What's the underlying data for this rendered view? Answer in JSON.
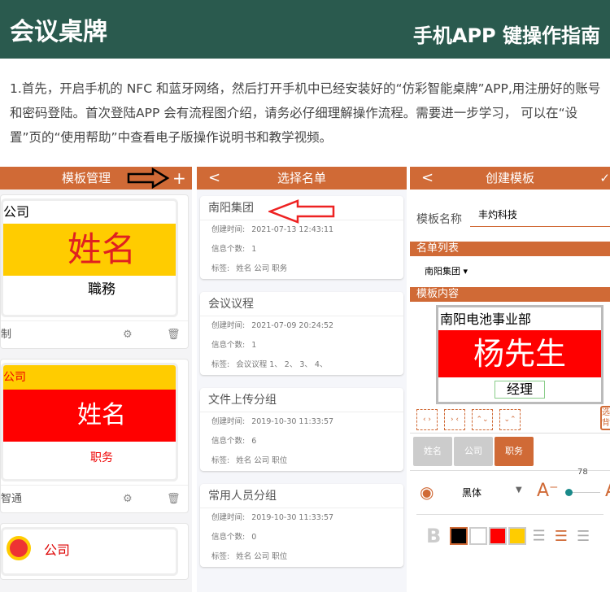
{
  "header": {
    "title": "会议桌牌",
    "subtitle": "手机APP 键操作指南"
  },
  "intro": "1.首先，开启手机的 NFC 和蓝牙网络，然后打开手机中已经安装好的“仿彩智能桌牌”APP,用注册好的账号和密码登陆。首次登陆APP 会有流程图介绍，请务必仔细理解操作流程。需要进一步学习， 可以在“设置”页的“使用帮助”中查看电子版操作说明书和教学视频。",
  "screen1": {
    "title": "模板管理",
    "add": "+",
    "cards": [
      {
        "company": "公司",
        "name": "姓名",
        "position": "職務",
        "footer": "制"
      },
      {
        "company": "公司",
        "name": "姓名",
        "position": "职务",
        "footer": "智通"
      },
      {
        "company": "公司"
      }
    ]
  },
  "screen2": {
    "title": "选择名单",
    "back": "<",
    "labels": {
      "created": "创建时间:",
      "count": "信息个数:",
      "tags": "标签:"
    },
    "lists": [
      {
        "name": "南阳集团",
        "created": "2021-07-13 12:43:11",
        "count": "1",
        "tags": "姓名 公司 职务"
      },
      {
        "name": "会议议程",
        "created": "2021-07-09 20:24:52",
        "count": "1",
        "tags": "会议议程 1、 2、 3、 4、"
      },
      {
        "name": "文件上传分组",
        "created": "2019-10-30 11:33:57",
        "count": "6",
        "tags": "姓名 公司 职位"
      },
      {
        "name": "常用人员分组",
        "created": "2019-10-30 11:33:57",
        "count": "0",
        "tags": "姓名 公司 职位"
      }
    ]
  },
  "screen3": {
    "title": "创建模板",
    "back": "<",
    "name_label": "模板名称",
    "name_value": "丰灼科技",
    "list_section": "名单列表",
    "list_selected": "南阳集团",
    "content_section": "模板内容",
    "preview": {
      "company": "南阳电池事业部",
      "name": "杨先生",
      "position": "经理"
    },
    "bg_button": "选背",
    "fields": [
      "姓名",
      "公司",
      "职务"
    ],
    "font": "黑体",
    "font_size": "78",
    "font_size_value": 78,
    "colors": [
      "#000000",
      "#ffffff",
      "#ff0000",
      "#ffcc00"
    ],
    "accent": "#d06a36"
  }
}
